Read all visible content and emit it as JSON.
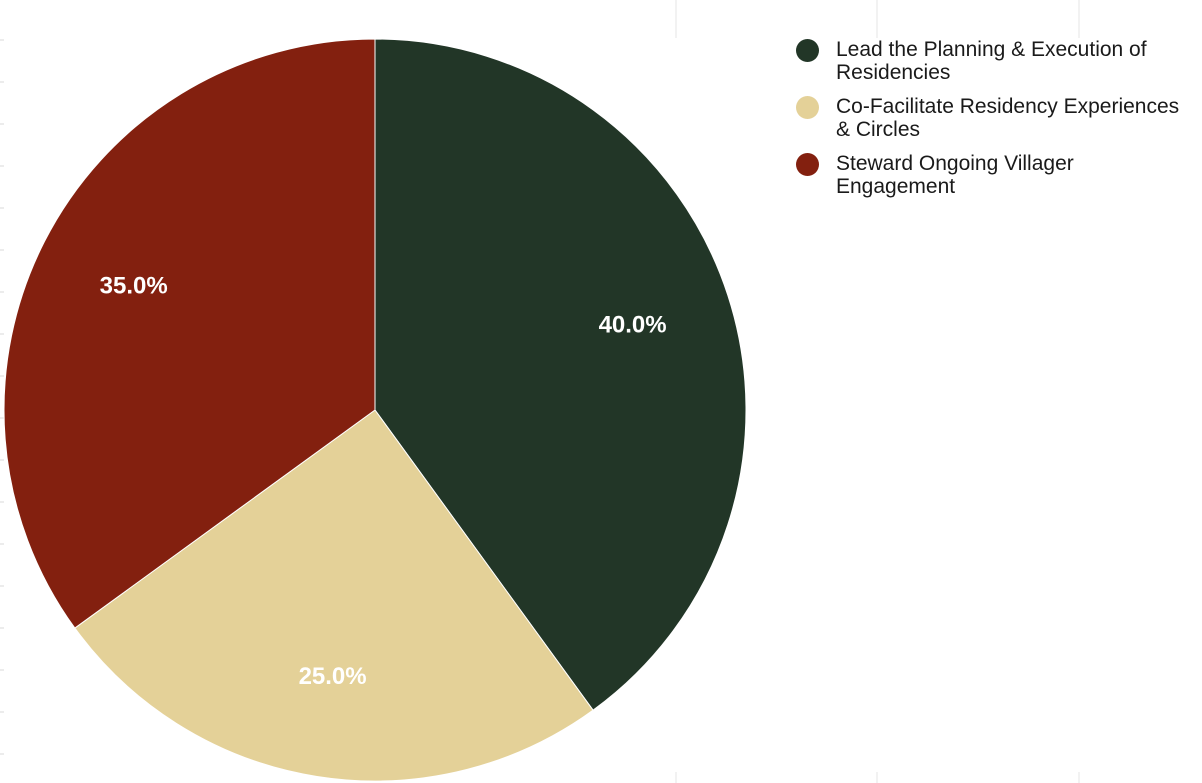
{
  "chart_data": {
    "type": "pie",
    "categories": [
      "Lead the Planning & Execution of Residencies",
      "Co-Facilitate Residency Experiences & Circles",
      "Steward Ongoing Villager Engagement"
    ],
    "values": [
      40.0,
      25.0,
      35.0
    ],
    "labels": [
      "40.0%",
      "25.0%",
      "35.0%"
    ],
    "colors": [
      "#223627",
      "#e4d198",
      "#83200f"
    ],
    "title": "",
    "legend_position": "right",
    "start_angle": "top, clockwise",
    "grid": false
  },
  "legend": {
    "items": [
      {
        "label": "Lead the Planning & Execution of Residencies",
        "color": "#223627"
      },
      {
        "label": "Co-Facilitate Residency Experiences & Circles",
        "color": "#e4d198"
      },
      {
        "label": "Steward Ongoing Villager Engagement",
        "color": "#83200f"
      }
    ]
  }
}
